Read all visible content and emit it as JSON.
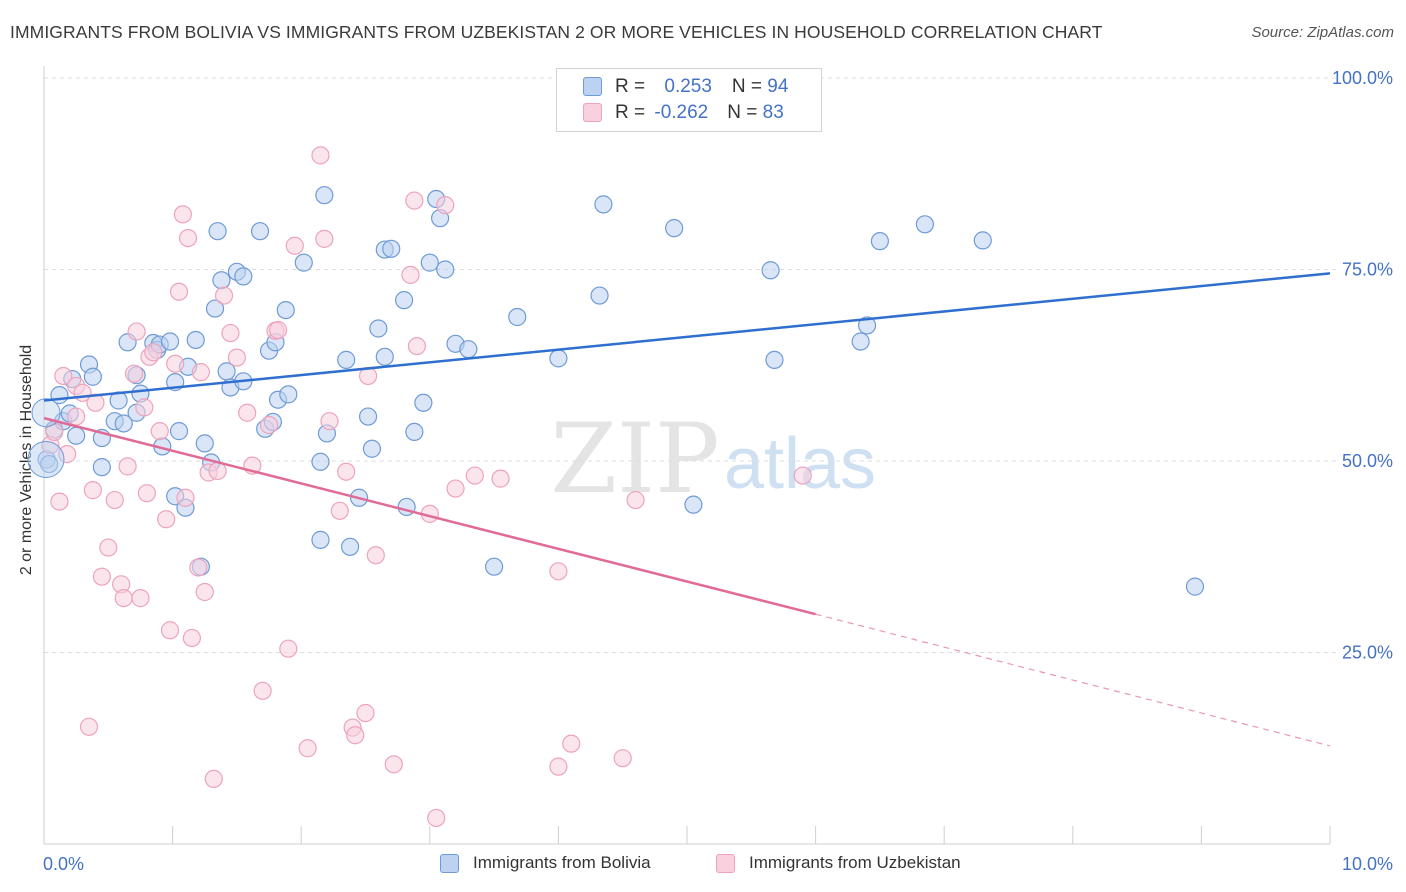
{
  "title": "IMMIGRANTS FROM BOLIVIA VS IMMIGRANTS FROM UZBEKISTAN 2 OR MORE VEHICLES IN HOUSEHOLD CORRELATION CHART",
  "source": "Source: ZipAtlas.com",
  "watermark": {
    "zip": "ZIP",
    "atlas": "atlas"
  },
  "legend": {
    "bolivia": {
      "r_label": "R = ",
      "r_value": "0.253",
      "n_label": "N = ",
      "n_value": "94"
    },
    "uzbekistan": {
      "r_label": "R = ",
      "r_value": "-0.262",
      "n_label": "N = ",
      "n_value": "83"
    }
  },
  "chart_data": {
    "type": "scatter",
    "title": "IMMIGRANTS FROM BOLIVIA VS IMMIGRANTS FROM UZBEKISTAN 2 OR MORE VEHICLES IN HOUSEHOLD CORRELATION CHART",
    "xlabel": "",
    "ylabel": "2 or more Vehicles in Household",
    "xlim": [
      0,
      10
    ],
    "ylim": [
      0,
      100
    ],
    "x_tick_labels": [
      "0.0%",
      "10.0%"
    ],
    "y_tick_labels": [
      "100.0%",
      "75.0%",
      "50.0%",
      "25.0%"
    ],
    "y_ticks": [
      100,
      75,
      50,
      25
    ],
    "grid": true,
    "legend_position": "top-center",
    "series": [
      {
        "name": "Immigrants from Bolivia",
        "color": "#6e9bd6",
        "fill": "#bcd2f0",
        "r": 0.253,
        "n": 94,
        "trend": {
          "x": [
            0,
            10
          ],
          "y": [
            57.9,
            74.5
          ]
        },
        "points": [
          [
            0.02,
            50.2
          ],
          [
            0.04,
            49.6
          ],
          [
            0.08,
            54.1
          ],
          [
            0.12,
            58.6
          ],
          [
            0.15,
            55.2
          ],
          [
            0.2,
            56.2
          ],
          [
            0.22,
            60.7
          ],
          [
            0.25,
            53.3
          ],
          [
            0.35,
            62.6
          ],
          [
            0.38,
            61
          ],
          [
            0.45,
            49.2
          ],
          [
            0.45,
            53
          ],
          [
            0.55,
            55.2
          ],
          [
            0.58,
            57.9
          ],
          [
            0.62,
            54.9
          ],
          [
            0.65,
            65.5
          ],
          [
            0.72,
            56.3
          ],
          [
            0.72,
            61.2
          ],
          [
            0.75,
            58.8
          ],
          [
            0.85,
            65.4
          ],
          [
            0.88,
            64.5
          ],
          [
            0.9,
            65.2
          ],
          [
            0.92,
            51.9
          ],
          [
            0.98,
            65.6
          ],
          [
            1.02,
            45.4
          ],
          [
            1.02,
            60.3
          ],
          [
            1.05,
            53.9
          ],
          [
            1.1,
            43.9
          ],
          [
            1.12,
            62.3
          ],
          [
            1.18,
            65.8
          ],
          [
            1.22,
            36.2
          ],
          [
            1.25,
            52.3
          ],
          [
            1.3,
            49.8
          ],
          [
            1.33,
            69.9
          ],
          [
            1.35,
            80
          ],
          [
            1.38,
            73.6
          ],
          [
            1.42,
            61.7
          ],
          [
            1.45,
            59.6
          ],
          [
            1.5,
            74.7
          ],
          [
            1.55,
            60.4
          ],
          [
            1.55,
            74.1
          ],
          [
            1.68,
            80
          ],
          [
            1.72,
            54.2
          ],
          [
            1.75,
            64.4
          ],
          [
            1.78,
            55.1
          ],
          [
            1.8,
            65.5
          ],
          [
            1.82,
            58
          ],
          [
            1.88,
            69.7
          ],
          [
            1.9,
            58.7
          ],
          [
            2.02,
            75.9
          ],
          [
            2.15,
            39.7
          ],
          [
            2.15,
            49.9
          ],
          [
            2.2,
            53.6
          ],
          [
            2.18,
            84.7
          ],
          [
            2.35,
            63.2
          ],
          [
            2.38,
            38.8
          ],
          [
            2.45,
            45.2
          ],
          [
            2.55,
            51.6
          ],
          [
            2.52,
            55.8
          ],
          [
            2.6,
            67.3
          ],
          [
            2.65,
            63.6
          ],
          [
            2.65,
            77.6
          ],
          [
            2.7,
            77.7
          ],
          [
            2.8,
            71
          ],
          [
            2.82,
            44
          ],
          [
            2.88,
            53.8
          ],
          [
            2.95,
            57.6
          ],
          [
            3.0,
            75.9
          ],
          [
            3.05,
            84.2
          ],
          [
            3.08,
            81.7
          ],
          [
            3.12,
            75
          ],
          [
            3.2,
            65.3
          ],
          [
            3.3,
            64.6
          ],
          [
            3.5,
            36.2
          ],
          [
            3.68,
            68.8
          ],
          [
            4.0,
            63.4
          ],
          [
            4.32,
            71.6
          ],
          [
            4.35,
            83.5
          ],
          [
            4.9,
            80.4
          ],
          [
            5.05,
            44.3
          ],
          [
            5.65,
            74.9
          ],
          [
            5.68,
            63.2
          ],
          [
            6.35,
            65.6
          ],
          [
            6.4,
            67.7
          ],
          [
            6.5,
            78.7
          ],
          [
            6.85,
            80.9
          ],
          [
            7.3,
            78.8
          ],
          [
            8.95,
            33.6
          ]
        ]
      },
      {
        "name": "Immigrants from Uzbekistan",
        "color": "#eda3bc",
        "fill": "#f8d0de",
        "r": -0.262,
        "n": 83,
        "trend": {
          "x": [
            0,
            6.0
          ],
          "y": [
            55.6,
            30
          ],
          "dashed_to": {
            "x": 10,
            "y": 12.8
          }
        },
        "points": [
          [
            0.05,
            52.1
          ],
          [
            0.08,
            53.8
          ],
          [
            0.12,
            44.7
          ],
          [
            0.15,
            61.1
          ],
          [
            0.18,
            50.9
          ],
          [
            0.25,
            59.8
          ],
          [
            0.25,
            55.8
          ],
          [
            0.3,
            58.9
          ],
          [
            0.35,
            15.3
          ],
          [
            0.38,
            46.2
          ],
          [
            0.4,
            57.6
          ],
          [
            0.45,
            34.9
          ],
          [
            0.5,
            38.7
          ],
          [
            0.55,
            44.9
          ],
          [
            0.6,
            33.9
          ],
          [
            0.62,
            32.1
          ],
          [
            0.65,
            49.3
          ],
          [
            0.7,
            61.4
          ],
          [
            0.72,
            66.9
          ],
          [
            0.75,
            32.1
          ],
          [
            0.78,
            57
          ],
          [
            0.8,
            45.8
          ],
          [
            0.82,
            63.6
          ],
          [
            0.85,
            64.2
          ],
          [
            0.9,
            53.9
          ],
          [
            0.95,
            42.4
          ],
          [
            0.98,
            27.9
          ],
          [
            1.02,
            62.7
          ],
          [
            1.05,
            72.1
          ],
          [
            1.08,
            82.2
          ],
          [
            1.1,
            45.2
          ],
          [
            1.12,
            79.1
          ],
          [
            1.15,
            26.9
          ],
          [
            1.2,
            36.1
          ],
          [
            1.22,
            61.6
          ],
          [
            1.25,
            32.9
          ],
          [
            1.28,
            48.5
          ],
          [
            1.32,
            8.5
          ],
          [
            1.35,
            48.7
          ],
          [
            1.4,
            71.6
          ],
          [
            1.45,
            66.7
          ],
          [
            1.5,
            63.5
          ],
          [
            1.58,
            56.3
          ],
          [
            1.62,
            49.4
          ],
          [
            1.7,
            20
          ],
          [
            1.75,
            54.7
          ],
          [
            1.8,
            67
          ],
          [
            1.82,
            67.1
          ],
          [
            1.9,
            25.5
          ],
          [
            1.95,
            78.1
          ],
          [
            2.05,
            12.5
          ],
          [
            2.15,
            89.9
          ],
          [
            2.18,
            79
          ],
          [
            2.22,
            55.2
          ],
          [
            2.3,
            43.5
          ],
          [
            2.35,
            48.6
          ],
          [
            2.4,
            15.2
          ],
          [
            2.42,
            14.2
          ],
          [
            2.5,
            17.1
          ],
          [
            2.52,
            61.1
          ],
          [
            2.58,
            37.7
          ],
          [
            2.72,
            10.4
          ],
          [
            2.85,
            74.3
          ],
          [
            2.88,
            84
          ],
          [
            2.9,
            65
          ],
          [
            3.0,
            43.1
          ],
          [
            3.05,
            3.4
          ],
          [
            3.12,
            83.4
          ],
          [
            3.2,
            46.4
          ],
          [
            3.35,
            48.1
          ],
          [
            3.55,
            47.7
          ],
          [
            4.0,
            35.6
          ],
          [
            4.0,
            10.1
          ],
          [
            4.1,
            13.1
          ],
          [
            4.5,
            11.2
          ],
          [
            4.6,
            44.9
          ],
          [
            5.9,
            48.1
          ]
        ]
      }
    ]
  },
  "bottom_legend": [
    {
      "label": "Immigrants from Bolivia"
    },
    {
      "label": "Immigrants from Uzbekistan"
    }
  ],
  "colors": {
    "bolivia_stroke": "#6e9bd6",
    "bolivia_fill": "#bcd2f0",
    "bolivia_line": "#2f6fcf",
    "uzbekistan_stroke": "#eda3bc",
    "uzbekistan_fill": "#f8d0de",
    "uzbekistan_line": "#e06b96",
    "tick_label": "#4472c4"
  }
}
